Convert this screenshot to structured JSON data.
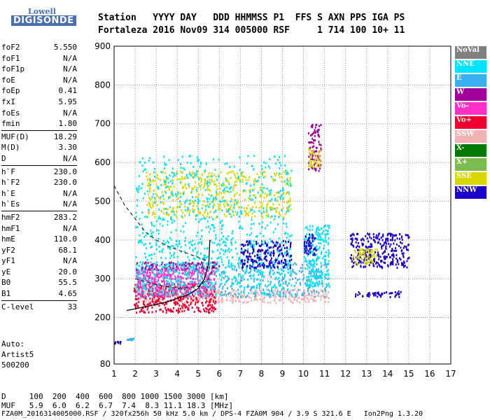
{
  "logo": {
    "top": "Lowell",
    "bottom": "DIGISONDE"
  },
  "header": {
    "line1": "Station   YYYY DAY   DDD HHMMSS P1  FFS S AXN PPS IGA PS",
    "line2": "Fortaleza 2016 Nov09 314 005000 RSF     1 714 100 10+ 11"
  },
  "params": {
    "groups": [
      [
        [
          "foF2",
          "5.550"
        ],
        [
          "foF1",
          "N/A"
        ],
        [
          "foF1p",
          "N/A"
        ],
        [
          "foE",
          "N/A"
        ],
        [
          "foEp",
          "0.41"
        ],
        [
          "fxI",
          "5.95"
        ],
        [
          "foEs",
          "N/A"
        ],
        [
          "fmin",
          "1.80"
        ]
      ],
      [
        [
          "MUF(D)",
          "18.29"
        ],
        [
          "M(D)",
          "3.30"
        ],
        [
          "D",
          "N/A"
        ]
      ],
      [
        [
          "h`F",
          "230.0"
        ],
        [
          "h`F2",
          "230.0"
        ],
        [
          "h`E",
          "N/A"
        ],
        [
          "h`Es",
          "N/A"
        ]
      ],
      [
        [
          "hmF2",
          "283.2"
        ],
        [
          "hmF1",
          "N/A"
        ],
        [
          "hmE",
          "110.0"
        ],
        [
          "yF2",
          "68.1"
        ],
        [
          "yF1",
          "N/A"
        ],
        [
          "yE",
          "20.0"
        ],
        [
          "B0",
          "55.5"
        ],
        [
          "B1",
          "4.65"
        ]
      ],
      [
        [
          "C-level",
          "33"
        ]
      ]
    ]
  },
  "auto": {
    "line1": "Auto:",
    "line2": "Artist5",
    "line3": "500200"
  },
  "legend": [
    {
      "label": "NoVal",
      "color": "#808080"
    },
    {
      "label": "NNE",
      "color": "#00e5ff"
    },
    {
      "label": "E",
      "color": "#3ab0f0"
    },
    {
      "label": "W",
      "color": "#a0009b"
    },
    {
      "label": "Vo-",
      "color": "#ff30c8"
    },
    {
      "label": "Vo+",
      "color": "#ee0030"
    },
    {
      "label": "SSW",
      "color": "#f2b2b2"
    },
    {
      "label": "X-",
      "color": "#007a00"
    },
    {
      "label": "X+",
      "color": "#7cbb4e"
    },
    {
      "label": "SSE",
      "color": "#d8d800"
    },
    {
      "label": "NNW",
      "color": "#1a00c8"
    }
  ],
  "bottom": {
    "line1": "D     100  200  400  600  800 1000 1500 3000 [km]",
    "line2": "MUF   5.9  6.0  6.2  6.7  7.4  8.3 11.1 18.3 [MHz]",
    "line3": "FZA0M_2016314005000.RSF / 320fx256h 50 kHz 5.0 km / DPS-4 FZA0M 904 / 3.9 S 321.6 E   Ion2Png 1.3.20"
  },
  "chart_data": {
    "type": "scatter",
    "xlim": [
      1,
      17
    ],
    "ylim": [
      80,
      900
    ],
    "xticks": [
      1,
      2,
      3,
      4,
      5,
      6,
      7,
      8,
      9,
      10,
      11,
      12,
      13,
      14,
      15,
      16,
      17
    ],
    "yticks": [
      80,
      200,
      300,
      400,
      500,
      600,
      700,
      800,
      900
    ],
    "grid": true,
    "legend_placement": "right",
    "clusters": [
      {
        "name": "SSW",
        "x": [
          2.0,
          11.2
        ],
        "y": [
          240,
          275
        ]
      },
      {
        "name": "Vo+",
        "x": [
          1.9,
          5.8
        ],
        "y": [
          215,
          290
        ]
      },
      {
        "name": "E",
        "x": [
          2.0,
          11.2
        ],
        "y": [
          255,
          345
        ]
      },
      {
        "name": "W",
        "x": [
          2.0,
          6.0
        ],
        "y": [
          325,
          345
        ]
      },
      {
        "name": "Vo-",
        "x": [
          2.0,
          5.8
        ],
        "y": [
          255,
          330
        ]
      },
      {
        "name": "NNE",
        "x": [
          2.0,
          9.4
        ],
        "y": [
          260,
          400
        ]
      },
      {
        "name": "NNW",
        "x": [
          7.0,
          9.4
        ],
        "y": [
          330,
          400
        ]
      },
      {
        "name": "SSE",
        "x": [
          2.5,
          9.4
        ],
        "y": [
          460,
          580
        ]
      },
      {
        "name": "NNE",
        "x": [
          2.0,
          9.4
        ],
        "y": [
          380,
          620
        ]
      },
      {
        "name": "W",
        "x": [
          10.2,
          10.8
        ],
        "y": [
          580,
          700
        ]
      },
      {
        "name": "SSE",
        "x": [
          10.2,
          10.8
        ],
        "y": [
          590,
          640
        ]
      },
      {
        "name": "NNE",
        "x": [
          10.0,
          11.2
        ],
        "y": [
          280,
          440
        ]
      },
      {
        "name": "NNW",
        "x": [
          10.0,
          10.6
        ],
        "y": [
          360,
          420
        ]
      },
      {
        "name": "NNW",
        "x": [
          12.2,
          15.0
        ],
        "y": [
          330,
          420
        ]
      },
      {
        "name": "SSE",
        "x": [
          12.3,
          13.5
        ],
        "y": [
          340,
          380
        ]
      },
      {
        "name": "NNW",
        "x": [
          12.4,
          14.6
        ],
        "y": [
          255,
          270
        ]
      },
      {
        "name": "E",
        "x": [
          1.6,
          1.9
        ],
        "y": [
          143,
          148
        ]
      },
      {
        "name": "NNW",
        "x": [
          1.0,
          1.3
        ],
        "y": [
          135,
          140
        ]
      }
    ],
    "profile_curve": {
      "x": [
        1.6,
        2.5,
        3.5,
        4.5,
        5.0,
        5.3,
        5.5,
        5.55
      ],
      "y": [
        218,
        228,
        240,
        258,
        275,
        300,
        340,
        400
      ]
    },
    "dashed_curves": [
      {
        "x": [
          1.0,
          1.5,
          2.0,
          2.5,
          3.0,
          3.5,
          4.0,
          4.5,
          5.0,
          5.5
        ],
        "y": [
          540,
          490,
          455,
          420,
          400,
          385,
          375,
          365,
          355,
          345
        ]
      },
      {
        "x": [
          2.0,
          3.0,
          4.0,
          5.0,
          5.5,
          5.8
        ],
        "y": [
          300,
          285,
          275,
          280,
          300,
          340
        ]
      }
    ]
  }
}
